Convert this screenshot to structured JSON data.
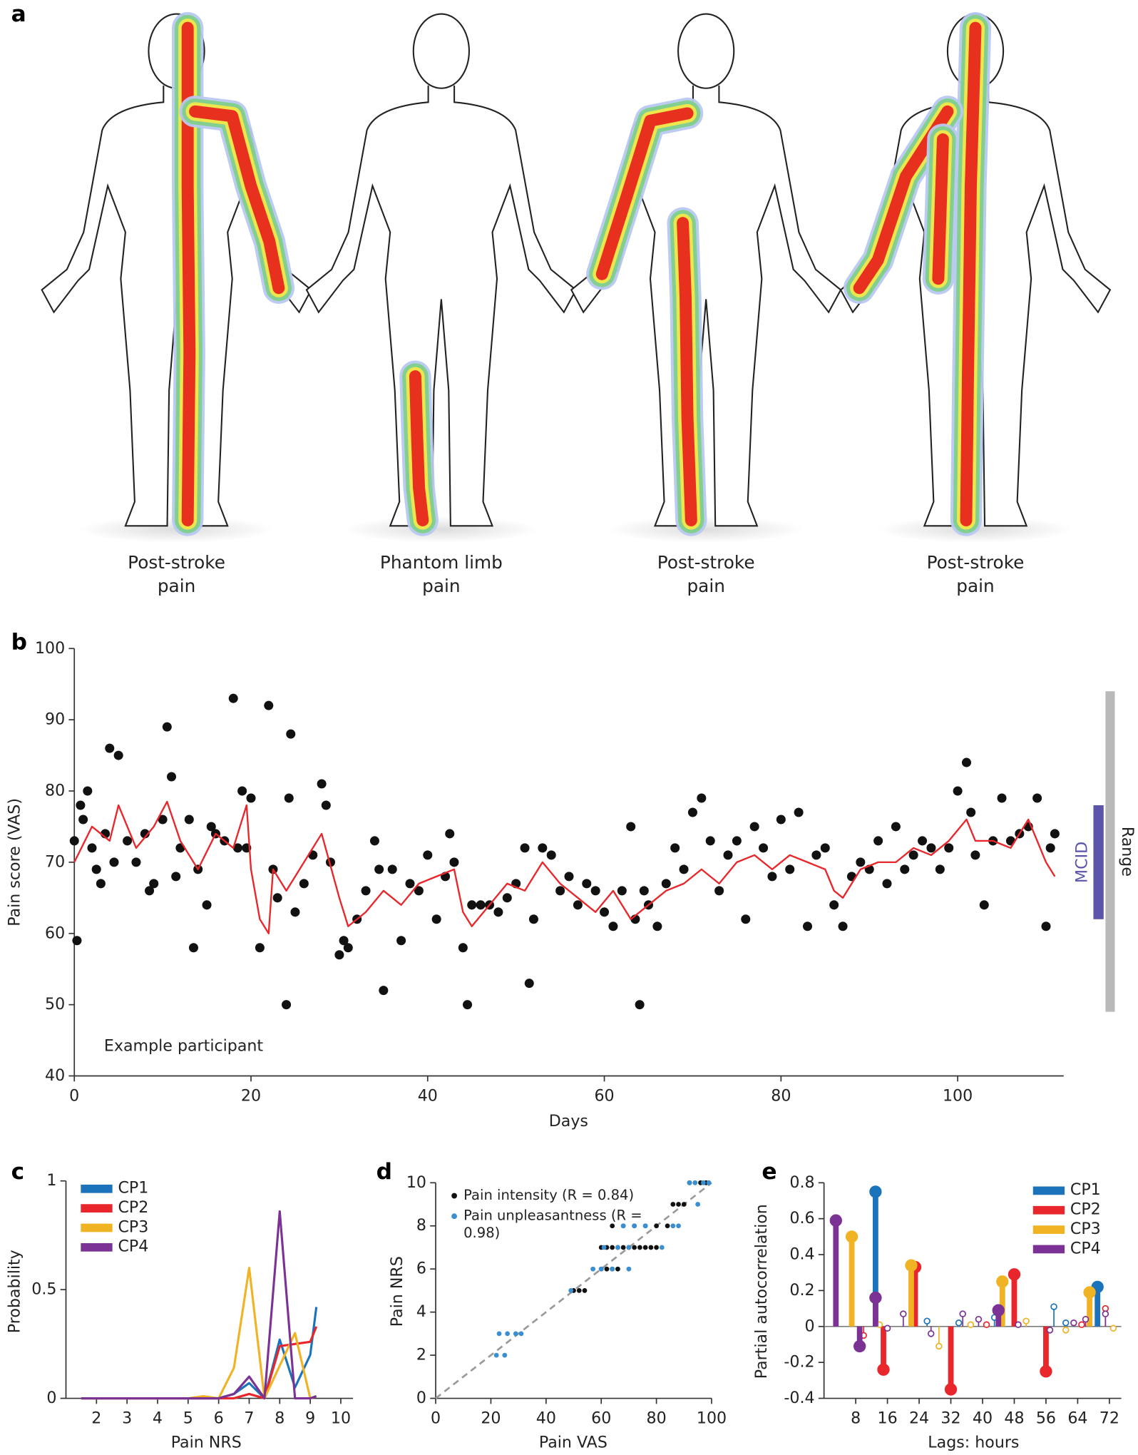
{
  "panel_labels": [
    "a",
    "b",
    "c",
    "d",
    "e"
  ],
  "body_maps": [
    {
      "label": "Post-stroke pain"
    },
    {
      "label": "Phantom limb pain"
    },
    {
      "label": "Post-stroke pain"
    },
    {
      "label": "Post-stroke pain"
    }
  ],
  "chart_data": [
    {
      "type": "scatter",
      "xlabel": "Days",
      "ylabel": "Pain score (VAS)",
      "annotation": "Example participant",
      "xlim": [
        0,
        112
      ],
      "xticks": [
        0,
        20,
        40,
        60,
        80,
        100
      ],
      "ylim": [
        40,
        100
      ],
      "yticks": [
        40,
        50,
        60,
        70,
        80,
        90,
        100
      ],
      "series": [
        {
          "mode": "points",
          "color": "#111111",
          "x": [
            0,
            0.3,
            0.7,
            1,
            1.5,
            2,
            2.5,
            3,
            3.5,
            4,
            4.5,
            5,
            6,
            7,
            8,
            8.5,
            9,
            10,
            10.5,
            11,
            11.5,
            12,
            13,
            13.5,
            14,
            15,
            15.5,
            16,
            17,
            18,
            18.5,
            19,
            19.5,
            20,
            21,
            22,
            22.5,
            23,
            24,
            24.3,
            24.5,
            25,
            26,
            27,
            28,
            28.5,
            29,
            30,
            30.5,
            31,
            32,
            33,
            34,
            34.5,
            35,
            36,
            37,
            38,
            39,
            40,
            41,
            42,
            42.5,
            43,
            44,
            44.5,
            45,
            46,
            47,
            48,
            49,
            50,
            51,
            51.5,
            52,
            53,
            54,
            55,
            56,
            57,
            58,
            59,
            60,
            61,
            62,
            63,
            63.5,
            64,
            64.5,
            65,
            66,
            67,
            68,
            69,
            70,
            71,
            72,
            73,
            74,
            75,
            76,
            77,
            78,
            79,
            80,
            81,
            82,
            83,
            84,
            85,
            86,
            87,
            88,
            89,
            90,
            91,
            92,
            93,
            94,
            95,
            96,
            97,
            98,
            99,
            100,
            101,
            101.5,
            102,
            103,
            104,
            105,
            106,
            107,
            108,
            109,
            110,
            110.5,
            111
          ],
          "values": [
            73,
            59,
            78,
            76,
            80,
            72,
            69,
            67,
            74,
            86,
            70,
            85,
            73,
            70,
            74,
            66,
            67,
            76,
            89,
            82,
            68,
            72,
            76,
            58,
            69,
            64,
            75,
            74,
            73,
            93,
            72,
            80,
            72,
            79,
            58,
            92,
            69,
            65,
            50,
            79,
            88,
            63,
            67,
            71,
            81,
            78,
            70,
            57,
            59,
            58,
            62,
            66,
            73,
            69,
            52,
            69,
            59,
            67,
            66,
            71,
            62,
            68,
            74,
            70,
            58,
            50,
            64,
            64,
            64,
            63,
            65,
            67,
            72,
            53,
            62,
            72,
            71,
            66,
            68,
            64,
            67,
            66,
            63,
            61,
            66,
            75,
            62,
            50,
            66,
            64,
            61,
            67,
            72,
            69,
            77,
            79,
            73,
            66,
            71,
            73,
            62,
            75,
            72,
            68,
            76,
            69,
            77,
            61,
            71,
            72,
            64,
            61,
            68,
            70,
            69,
            73,
            67,
            75,
            69,
            71,
            73,
            72,
            69,
            72,
            80,
            84,
            77,
            71,
            64,
            73,
            79,
            73,
            74,
            75,
            79,
            61,
            72,
            74
          ]
        },
        {
          "mode": "line",
          "color": "#e8262b",
          "x": [
            0,
            2,
            4,
            5,
            7,
            9,
            10.5,
            12,
            14,
            16,
            18,
            19.5,
            20,
            21,
            22,
            22.5,
            24,
            26,
            28,
            30,
            31,
            33,
            35,
            37,
            39,
            41,
            43,
            44,
            45,
            47,
            49,
            51,
            53,
            55,
            57,
            59,
            61,
            63,
            65,
            67,
            69,
            71,
            73,
            75,
            77,
            79,
            81,
            83,
            85,
            86,
            87,
            89,
            91,
            93,
            95,
            97,
            99,
            101,
            102,
            104,
            106,
            108,
            110,
            111
          ],
          "values": [
            70,
            75,
            73,
            78,
            72,
            75,
            78.5,
            73,
            69,
            74,
            72,
            78,
            69,
            62,
            60,
            69,
            66,
            70,
            74,
            65,
            61,
            63,
            66,
            64,
            67,
            68,
            69,
            63,
            61,
            64,
            67,
            66,
            70,
            67,
            65,
            63,
            66,
            62,
            64,
            66,
            67,
            69,
            67,
            70,
            71,
            69,
            71,
            70,
            69,
            66,
            65,
            69,
            70,
            70,
            72,
            71,
            73,
            76,
            73,
            73,
            72,
            76,
            70,
            68
          ]
        }
      ],
      "range": {
        "label": "Range",
        "values": [
          49,
          94
        ],
        "color": "#b9b9b9"
      },
      "mcid": {
        "label": "MCID",
        "values": [
          62,
          78
        ],
        "color": "#5a55a8"
      }
    },
    {
      "type": "line",
      "xlabel": "Pain NRS",
      "ylabel": "Probability",
      "legend": "upper left",
      "xlim": [
        1,
        10.4
      ],
      "xticks": [
        2,
        3,
        4,
        5,
        6,
        7,
        8,
        9,
        10
      ],
      "ylim": [
        0,
        1
      ],
      "yticks": [
        0,
        0.5,
        1
      ],
      "series": [
        {
          "name": "CP1",
          "color": "#1a73bb",
          "x": [
            1.5,
            2,
            3,
            4,
            5,
            5.5,
            6,
            6.5,
            7,
            7.5,
            8,
            8.5,
            9,
            9.2
          ],
          "values": [
            0,
            0,
            0,
            0,
            0,
            0,
            0,
            0.02,
            0.07,
            0,
            0.27,
            0.05,
            0.2,
            0.42
          ]
        },
        {
          "name": "CP2",
          "color": "#e8262b",
          "x": [
            1.5,
            2,
            3,
            4,
            5,
            5.5,
            6,
            6.5,
            7,
            7.5,
            8,
            8.5,
            9,
            9.2
          ],
          "values": [
            0,
            0,
            0,
            0,
            0,
            0,
            0,
            0,
            0.02,
            0,
            0.24,
            0.25,
            0.26,
            0.33
          ]
        },
        {
          "name": "CP3",
          "color": "#f0b323",
          "x": [
            1.5,
            2,
            3,
            4,
            5,
            5.5,
            6,
            6.5,
            7,
            7.5,
            8,
            8.5,
            9,
            9.2
          ],
          "values": [
            0,
            0,
            0,
            0,
            0,
            0.01,
            0,
            0.14,
            0.6,
            0,
            0.15,
            0.3,
            0,
            0.01
          ]
        },
        {
          "name": "CP4",
          "color": "#7b3294",
          "x": [
            1.5,
            2,
            3,
            4,
            5,
            5.5,
            6,
            6.5,
            7,
            7.5,
            8,
            8.5,
            9,
            9.2
          ],
          "values": [
            0,
            0,
            0,
            0,
            0,
            0,
            0,
            0.02,
            0.1,
            0,
            0.86,
            0,
            0,
            0.01
          ]
        }
      ]
    },
    {
      "type": "scatter",
      "xlabel": "Pain VAS",
      "ylabel": "Pain NRS",
      "legend": "upper left",
      "diagonal": true,
      "xlim": [
        0,
        100
      ],
      "xticks": [
        0,
        20,
        40,
        60,
        80,
        100
      ],
      "ylim": [
        0,
        10
      ],
      "yticks": [
        0,
        2,
        4,
        6,
        8,
        10
      ],
      "series": [
        {
          "name": "Pain intensity (R = 0.84)",
          "mode": "points",
          "color": "#111111",
          "x": [
            50,
            52,
            54,
            60,
            62,
            64,
            66,
            60,
            62,
            64,
            66,
            68,
            70,
            72,
            74,
            76,
            78,
            80,
            64,
            68,
            72,
            76,
            80,
            84,
            86,
            88,
            90,
            92,
            96,
            98
          ],
          "values": [
            5,
            5,
            5,
            6,
            6,
            6,
            6,
            7,
            7,
            7,
            7,
            7,
            7,
            7,
            7,
            7,
            7,
            7,
            8,
            8,
            8,
            8,
            8,
            8,
            9,
            9,
            9,
            10,
            10,
            10
          ]
        },
        {
          "name": "Pain unpleasantness (R = 0.98)",
          "mode": "points",
          "color": "#3a8fd0",
          "x": [
            22,
            25,
            23,
            26,
            29,
            31,
            49,
            57,
            60,
            64,
            70,
            61,
            66,
            70,
            82,
            68,
            72,
            76,
            86,
            88,
            95,
            92,
            94,
            97,
            99
          ],
          "values": [
            2,
            2,
            3,
            3,
            3,
            3,
            5,
            6,
            6,
            6,
            6,
            7,
            7,
            7,
            7,
            8,
            8,
            8,
            8,
            8,
            9,
            10,
            10,
            10,
            10
          ]
        }
      ]
    },
    {
      "type": "stem",
      "xlabel": "Lags: hours",
      "ylabel": "Partial autocorrelation",
      "legend": "upper right",
      "xlim": [
        0,
        75
      ],
      "xticks": [
        8,
        16,
        24,
        32,
        40,
        48,
        56,
        64,
        72
      ],
      "ylim": [
        -0.4,
        0.8
      ],
      "yticks": [
        -0.4,
        -0.2,
        0,
        0.2,
        0.4,
        0.6,
        0.8
      ],
      "series": [
        {
          "name": "CP1",
          "color": "#1a73bb",
          "x": [
            13,
            26,
            34,
            43,
            58,
            61,
            69
          ],
          "values": [
            0.75,
            0.03,
            0.02,
            0.05,
            0.11,
            0.02,
            0.22
          ],
          "significant": [
            true,
            false,
            false,
            false,
            false,
            false,
            true
          ]
        },
        {
          "name": "CP2",
          "color": "#e8262b",
          "x": [
            10,
            15,
            23,
            32,
            41,
            48,
            56,
            65,
            71
          ],
          "values": [
            -0.05,
            -0.24,
            0.33,
            -0.35,
            0.01,
            0.29,
            -0.25,
            0.01,
            0.1
          ],
          "significant": [
            false,
            true,
            true,
            true,
            false,
            true,
            true,
            false,
            false
          ]
        },
        {
          "name": "CP3",
          "color": "#f0b323",
          "x": [
            7,
            14,
            22,
            29,
            37,
            45,
            51,
            61,
            67,
            73
          ],
          "values": [
            0.5,
            0.01,
            0.34,
            -0.11,
            0.01,
            0.25,
            0.03,
            -0.02,
            0.19,
            -0.01
          ],
          "significant": [
            true,
            false,
            true,
            false,
            false,
            true,
            false,
            false,
            true,
            false
          ]
        },
        {
          "name": "CP4",
          "color": "#7b3294",
          "x": [
            3,
            9,
            13,
            16,
            20,
            27,
            35,
            39,
            44,
            49,
            57,
            63,
            66,
            71
          ],
          "values": [
            0.59,
            -0.11,
            0.16,
            -0.01,
            0.07,
            -0.04,
            0.07,
            0.04,
            0.09,
            0.01,
            -0.02,
            0.02,
            0.04,
            0.07
          ],
          "significant": [
            true,
            true,
            true,
            false,
            false,
            false,
            false,
            false,
            true,
            false,
            false,
            false,
            false,
            false
          ]
        }
      ]
    }
  ]
}
